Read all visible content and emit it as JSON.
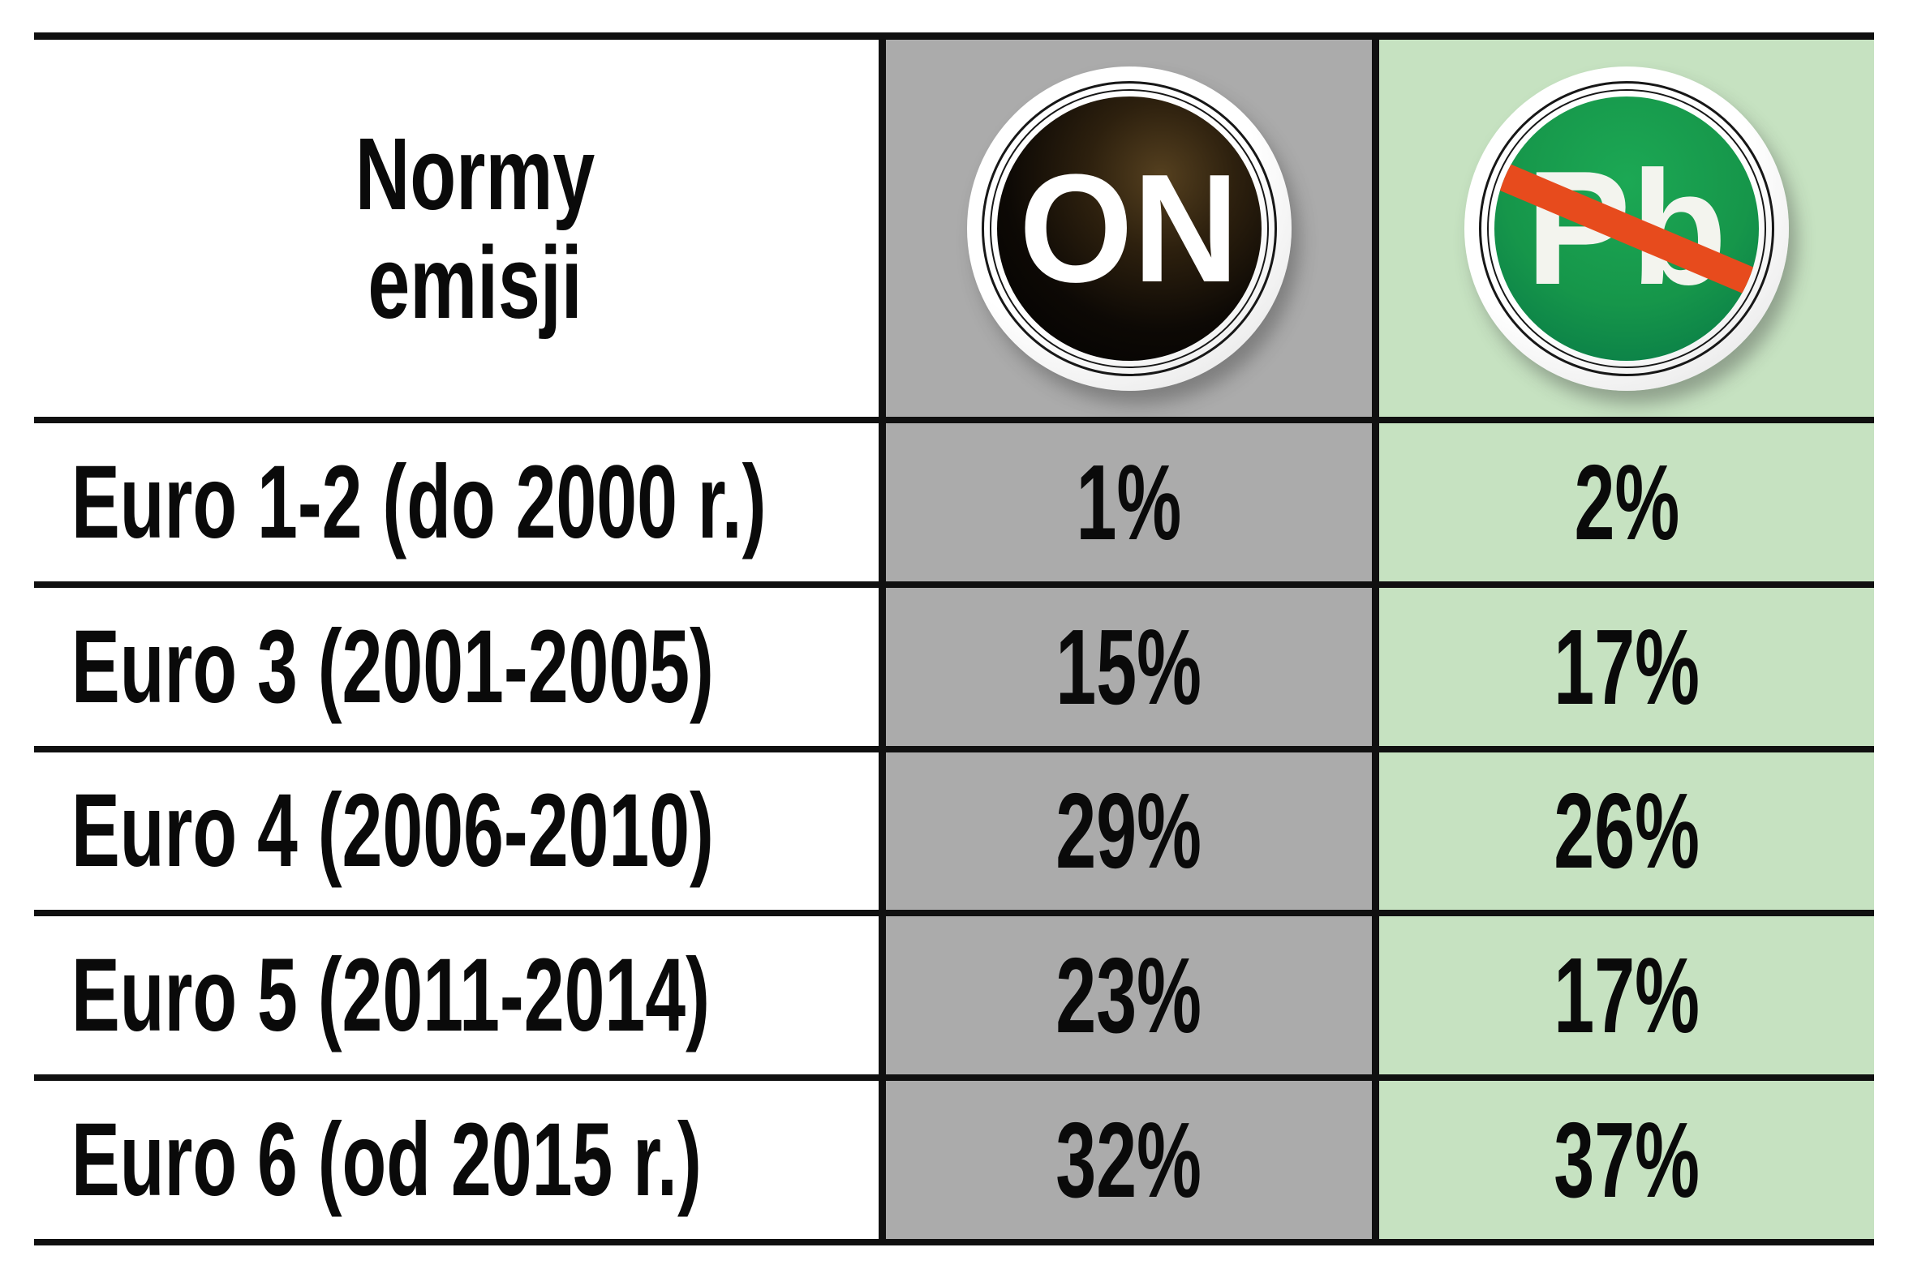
{
  "header": {
    "title_lines": [
      "Normy",
      "emisji"
    ],
    "columns": [
      {
        "key": "on",
        "badge_text": "ON",
        "badge_meaning": "diesel-fuel-badge"
      },
      {
        "key": "pb",
        "badge_text": "Pb",
        "badge_meaning": "unleaded-petrol-no-lead-badge"
      }
    ]
  },
  "rows": [
    {
      "label": "Euro 1-2 (do 2000 r.)",
      "on": "1%",
      "pb": "2%"
    },
    {
      "label": "Euro 3 (2001-2005)",
      "on": "15%",
      "pb": "17%"
    },
    {
      "label": "Euro 4 (2006-2010)",
      "on": "29%",
      "pb": "26%"
    },
    {
      "label": "Euro 5 (2011-2014)",
      "on": "23%",
      "pb": "17%"
    },
    {
      "label": "Euro 6 (od 2015 r.)",
      "on": "32%",
      "pb": "37%"
    }
  ],
  "colors": {
    "on_column_bg": "#ababab",
    "pb_column_bg": "#c6e2c1",
    "on_badge_disc": "#000000",
    "pb_badge_disc": "#15964a",
    "pb_strike": "#e74b1d",
    "border": "#101010",
    "text": "#0a0a0a"
  },
  "chart_data": {
    "type": "table",
    "title": "Normy emisji",
    "unit": "%",
    "categories": [
      "Euro 1-2 (do 2000 r.)",
      "Euro 3 (2001-2005)",
      "Euro 4 (2006-2010)",
      "Euro 5 (2011-2014)",
      "Euro 6 (od 2015 r.)"
    ],
    "series": [
      {
        "name": "ON",
        "values": [
          1,
          15,
          29,
          23,
          32
        ]
      },
      {
        "name": "Pb",
        "values": [
          2,
          17,
          26,
          17,
          37
        ]
      }
    ]
  }
}
